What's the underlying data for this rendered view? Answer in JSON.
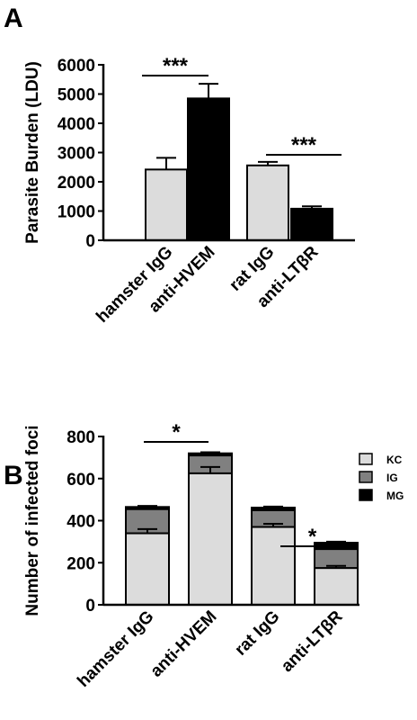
{
  "chart_data": [
    {
      "type": "bar",
      "panel": "A",
      "ylabel": "Parasite Burden  (LDU)",
      "categories": [
        "hamster IgG",
        "anti-HVEM",
        "rat IgG",
        "anti-LTβR"
      ],
      "values": [
        2420,
        4850,
        2560,
        1080
      ],
      "errors": [
        400,
        500,
        120,
        80
      ],
      "colors": [
        "#dcdcdc",
        "#000000",
        "#dcdcdc",
        "#000000"
      ],
      "ylim": [
        0,
        6000
      ],
      "yticks": [
        0,
        1000,
        2000,
        3000,
        4000,
        5000,
        6000
      ],
      "annotations": [
        {
          "text": "***"
        },
        {
          "text": "***"
        }
      ]
    },
    {
      "type": "bar",
      "stacked": true,
      "panel": "B",
      "ylabel": "Number of infected foci",
      "categories": [
        "hamster IgG",
        "anti-HVEM",
        "rat IgG",
        "anti-LTβR"
      ],
      "series": [
        {
          "name": "KC",
          "color": "#dcdcdc",
          "values": [
            340,
            625,
            370,
            175
          ],
          "errors": [
            20,
            30,
            15,
            10
          ]
        },
        {
          "name": "IG",
          "color": "#808080",
          "values": [
            115,
            85,
            80,
            90
          ]
        },
        {
          "name": "MG",
          "color": "#000000",
          "values": [
            10,
            10,
            12,
            30
          ],
          "errors": [
            5,
            5,
            5,
            5
          ]
        }
      ],
      "ylim": [
        0,
        800
      ],
      "yticks": [
        0,
        200,
        400,
        600,
        800
      ],
      "legend": "upper right",
      "annotations": [
        {
          "text": "*"
        },
        {
          "text": "*"
        }
      ]
    }
  ]
}
